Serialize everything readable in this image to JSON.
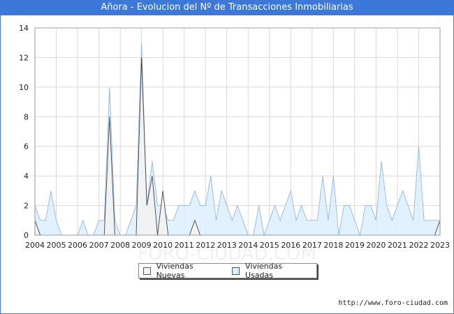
{
  "header": {
    "title": "Añora - Evolucion del Nº de Transacciones Inmobiliarias"
  },
  "footer": {
    "url": "http://www.foro-ciudad.com"
  },
  "watermark": "FORO-CIUDAD.COM",
  "colors": {
    "title_bg": "#3c78d8",
    "nuevas_fill": "#f2f2f2",
    "nuevas_line": "#444444",
    "usadas_fill": "#ddeeff",
    "usadas_line": "#8fb8e6"
  },
  "chart_data": {
    "type": "area",
    "title": "Añora - Evolucion del Nº de Transacciones Inmobiliarias",
    "xlabel": "",
    "ylabel": "",
    "ylim": [
      0,
      14
    ],
    "y_ticks": [
      "0",
      "2",
      "4",
      "6",
      "8",
      "10",
      "12",
      "14"
    ],
    "x_tick_labels": [
      "2004",
      "2005",
      "2006",
      "2007",
      "2008",
      "2009",
      "2010",
      "2011",
      "2012",
      "2013",
      "2014",
      "2015",
      "2016",
      "2017",
      "2018",
      "2019",
      "2020",
      "2021",
      "2022",
      "2023"
    ],
    "x_start": 2004,
    "x_step": 0.25,
    "grid": true,
    "legend_position": "bottom-center",
    "series": [
      {
        "name": "Viviendas Nuevas",
        "values": [
          1,
          0,
          0,
          0,
          0,
          0,
          0,
          0,
          0,
          0,
          0,
          0,
          0,
          0,
          8,
          0,
          0,
          0,
          0,
          0,
          12,
          2,
          4,
          0,
          3,
          0,
          0,
          0,
          0,
          0,
          1,
          0,
          0,
          0,
          0,
          0,
          0,
          0,
          0,
          0,
          0,
          0,
          0,
          0,
          0,
          0,
          0,
          0,
          0,
          0,
          0,
          0,
          0,
          0,
          0,
          0,
          0,
          0,
          0,
          0,
          0,
          0,
          0,
          0,
          0,
          0,
          0,
          0,
          0,
          0,
          0,
          0,
          0,
          0,
          0,
          0,
          1
        ]
      },
      {
        "name": "Viviendas Usadas",
        "values": [
          2,
          1,
          1,
          3,
          1,
          0,
          0,
          0,
          0,
          1,
          0,
          0,
          1,
          1,
          10,
          1,
          0,
          0,
          1,
          2,
          13,
          2,
          5,
          2,
          2,
          1,
          1,
          2,
          2,
          2,
          3,
          2,
          2,
          4,
          1,
          3,
          2,
          1,
          2,
          1,
          0,
          0,
          2,
          0,
          1,
          2,
          1,
          2,
          3,
          1,
          2,
          1,
          1,
          1,
          4,
          1,
          4,
          0,
          2,
          2,
          1,
          0,
          2,
          2,
          1,
          5,
          2,
          1,
          2,
          3,
          2,
          1,
          6,
          1,
          1,
          1,
          1
        ]
      }
    ]
  }
}
